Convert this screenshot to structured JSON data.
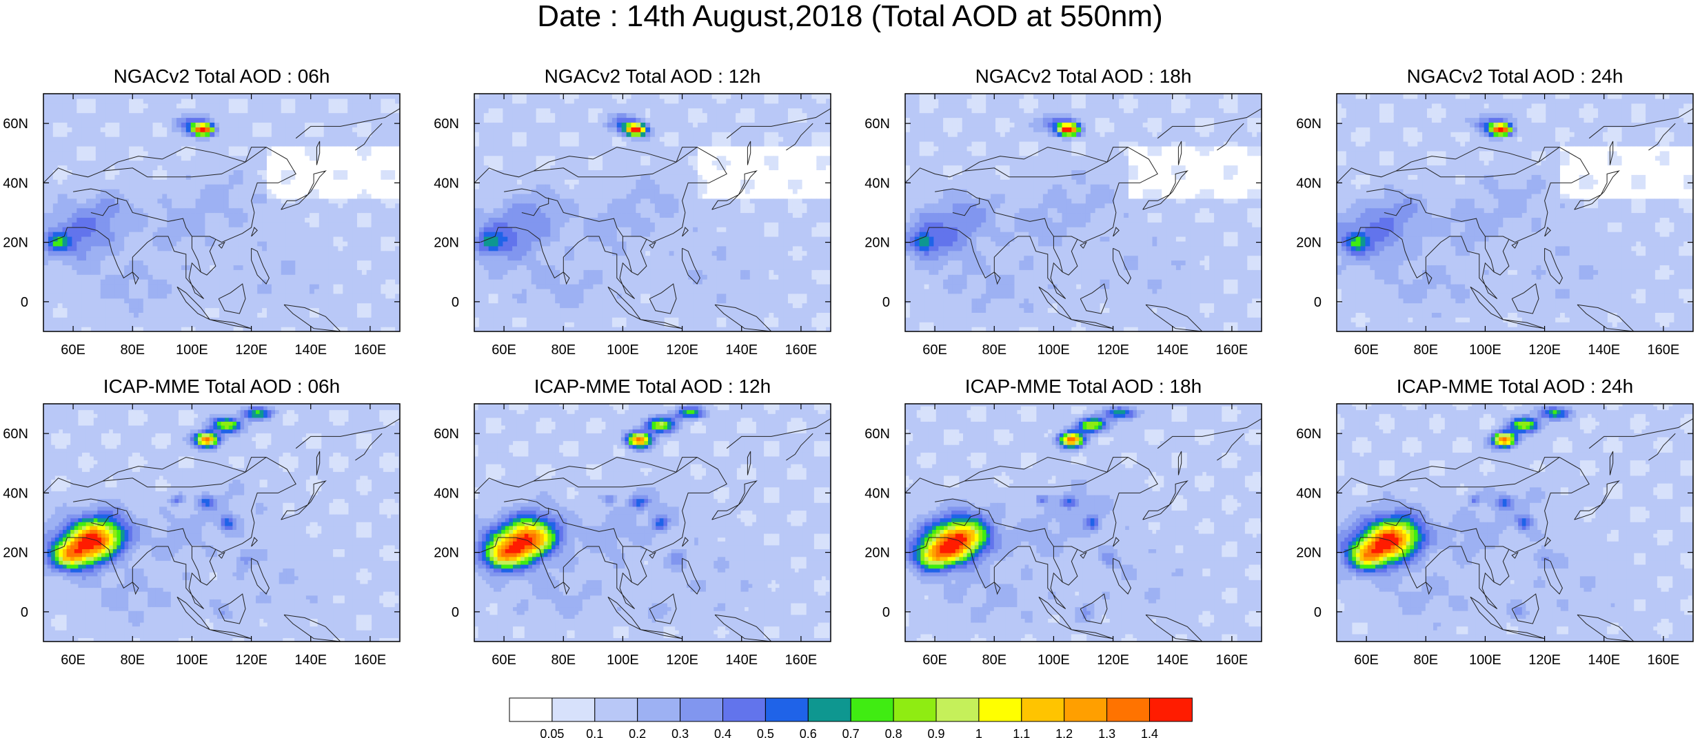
{
  "figure": {
    "title": "Date : 14th August,2018 (Total AOD at 550nm)"
  },
  "panels": [
    {
      "title": "NGACv2 Total AOD : 06h",
      "model": "NGAC",
      "hour": 6
    },
    {
      "title": "NGACv2 Total AOD : 12h",
      "model": "NGAC",
      "hour": 12
    },
    {
      "title": "NGACv2 Total AOD : 18h",
      "model": "NGAC",
      "hour": 18
    },
    {
      "title": "NGACv2 Total AOD : 24h",
      "model": "NGAC",
      "hour": 24
    },
    {
      "title": "ICAP-MME Total AOD : 06h",
      "model": "ICAP",
      "hour": 6
    },
    {
      "title": "ICAP-MME Total AOD : 12h",
      "model": "ICAP",
      "hour": 12
    },
    {
      "title": "ICAP-MME Total AOD : 18h",
      "model": "ICAP",
      "hour": 18
    },
    {
      "title": "ICAP-MME Total AOD : 24h",
      "model": "ICAP",
      "hour": 24
    }
  ],
  "axes": {
    "lon_range": [
      50,
      170
    ],
    "lat_range": [
      -10,
      70
    ],
    "lon_ticks": [
      {
        "value": 60,
        "label": "60E"
      },
      {
        "value": 80,
        "label": "80E"
      },
      {
        "value": 100,
        "label": "100E"
      },
      {
        "value": 120,
        "label": "120E"
      },
      {
        "value": 140,
        "label": "140E"
      },
      {
        "value": 160,
        "label": "160E"
      }
    ],
    "lat_ticks": [
      {
        "value": 0,
        "label": "0"
      },
      {
        "value": 20,
        "label": "20N"
      },
      {
        "value": 40,
        "label": "40N"
      },
      {
        "value": 60,
        "label": "60N"
      }
    ]
  },
  "colorbar": {
    "levels": [
      "0.05",
      "0.1",
      "0.2",
      "0.3",
      "0.4",
      "0.5",
      "0.6",
      "0.7",
      "0.8",
      "0.9",
      "1",
      "1.1",
      "1.2",
      "1.3",
      "1.4"
    ],
    "colors": [
      "#ffffff",
      "#d7e1fb",
      "#b9c8f7",
      "#9db1f3",
      "#8196ef",
      "#6274ec",
      "#1f63e8",
      "#0e9790",
      "#40ec12",
      "#8fec12",
      "#c5f05a",
      "#ffff00",
      "#ffc400",
      "#ff9f00",
      "#ff7300",
      "#ff1c00"
    ]
  },
  "map_colors": {
    "background": "#dfe6fb",
    "coastline": "#222222"
  }
}
